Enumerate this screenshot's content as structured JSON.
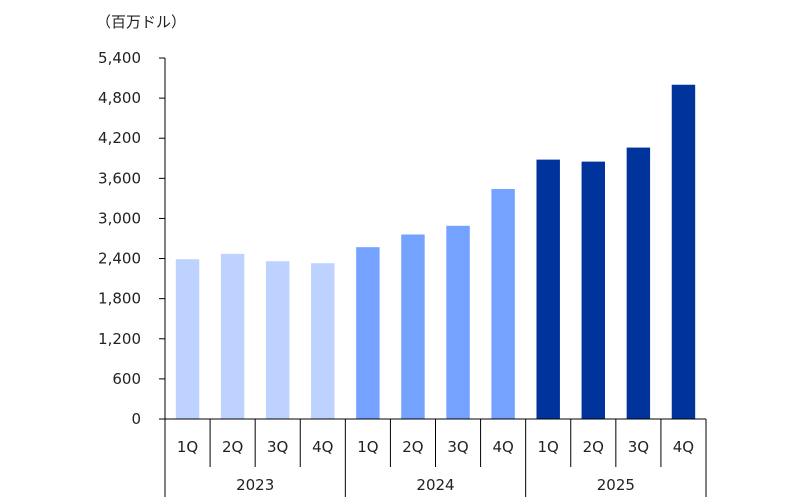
{
  "chart_data": {
    "type": "bar",
    "unit_label": "（百万ドル）",
    "y_ticks": [
      "5,400",
      "4,800",
      "4,200",
      "3,600",
      "3,000",
      "2,400",
      "1,800",
      "1,200",
      "600",
      "0"
    ],
    "ylim": [
      0,
      5400
    ],
    "grid": false,
    "legend": "none",
    "groups": [
      {
        "label": "2023",
        "quarters": [
          "1Q",
          "2Q",
          "3Q",
          "4Q"
        ],
        "values": [
          2390,
          2470,
          2360,
          2330
        ],
        "color": "#bdd2ff"
      },
      {
        "label": "2024",
        "quarters": [
          "1Q",
          "2Q",
          "3Q",
          "4Q"
        ],
        "values": [
          2570,
          2760,
          2890,
          3440
        ],
        "color": "#75a2ff"
      },
      {
        "label": "2025",
        "quarters": [
          "1Q",
          "2Q",
          "3Q",
          "4Q"
        ],
        "values": [
          3880,
          3850,
          4060,
          5000
        ],
        "color": "#00339b"
      }
    ]
  }
}
